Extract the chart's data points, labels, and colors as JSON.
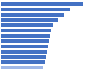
{
  "values": [
    2450,
    2050,
    1880,
    1700,
    1560,
    1490,
    1450,
    1420,
    1390,
    1360,
    1330,
    1300,
    1260
  ],
  "bar_color": "#4472c4",
  "last_bar_color": "#a0b8e8",
  "background_color": "#ffffff",
  "xlim": [
    0,
    2600
  ],
  "bar_height": 0.7,
  "n_bars": 13
}
